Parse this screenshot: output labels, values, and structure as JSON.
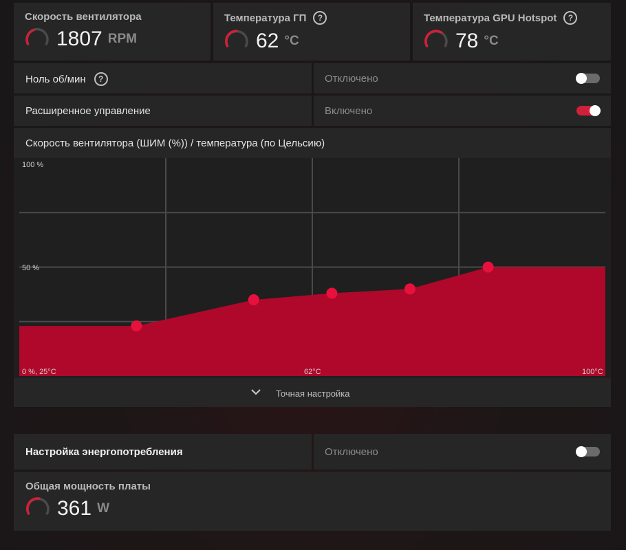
{
  "stats": {
    "fan_speed": {
      "title": "Скорость вентилятора",
      "value": "1807",
      "unit": "RPM"
    },
    "gpu_temp": {
      "title": "Температура ГП",
      "value": "62",
      "unit": "°C"
    },
    "hotspot_temp": {
      "title": "Температура GPU Hotspot",
      "value": "78",
      "unit": "°C"
    }
  },
  "zero_rpm": {
    "label": "Ноль об/мин",
    "value": "Отключено",
    "state": false
  },
  "advanced_control": {
    "label": "Расширенное управление",
    "value": "Включено",
    "state": true
  },
  "curve_header": "Скорость вентилятора (ШИМ (%)) / температура (по Цельсию)",
  "chart_data": {
    "type": "area",
    "title": "Скорость вентилятора (ШИМ (%)) / температура (по Цельсию)",
    "xlabel": "°C",
    "ylabel": "ШИМ %",
    "xlim": [
      25,
      100
    ],
    "ylim": [
      0,
      100
    ],
    "x": [
      40,
      55,
      65,
      75,
      85
    ],
    "y": [
      23,
      35,
      38,
      40,
      50
    ],
    "y_tick_labels": [
      "100 %",
      "50 %"
    ],
    "x_tick_labels": {
      "origin": "0 %, 25°C",
      "mid": "62°C",
      "end": "100°C"
    },
    "colors": {
      "fill": "#b0082a",
      "point": "#e8113d",
      "grid": "#4a4a4a"
    }
  },
  "fine_tune_label": "Точная настройка",
  "power": {
    "label": "Настройка энергопотребления",
    "value": "Отключено",
    "state": false
  },
  "board_power": {
    "title": "Общая мощность платы",
    "value": "361",
    "unit": "W"
  },
  "colors": {
    "accent": "#d0203a",
    "panel": "#262626"
  }
}
